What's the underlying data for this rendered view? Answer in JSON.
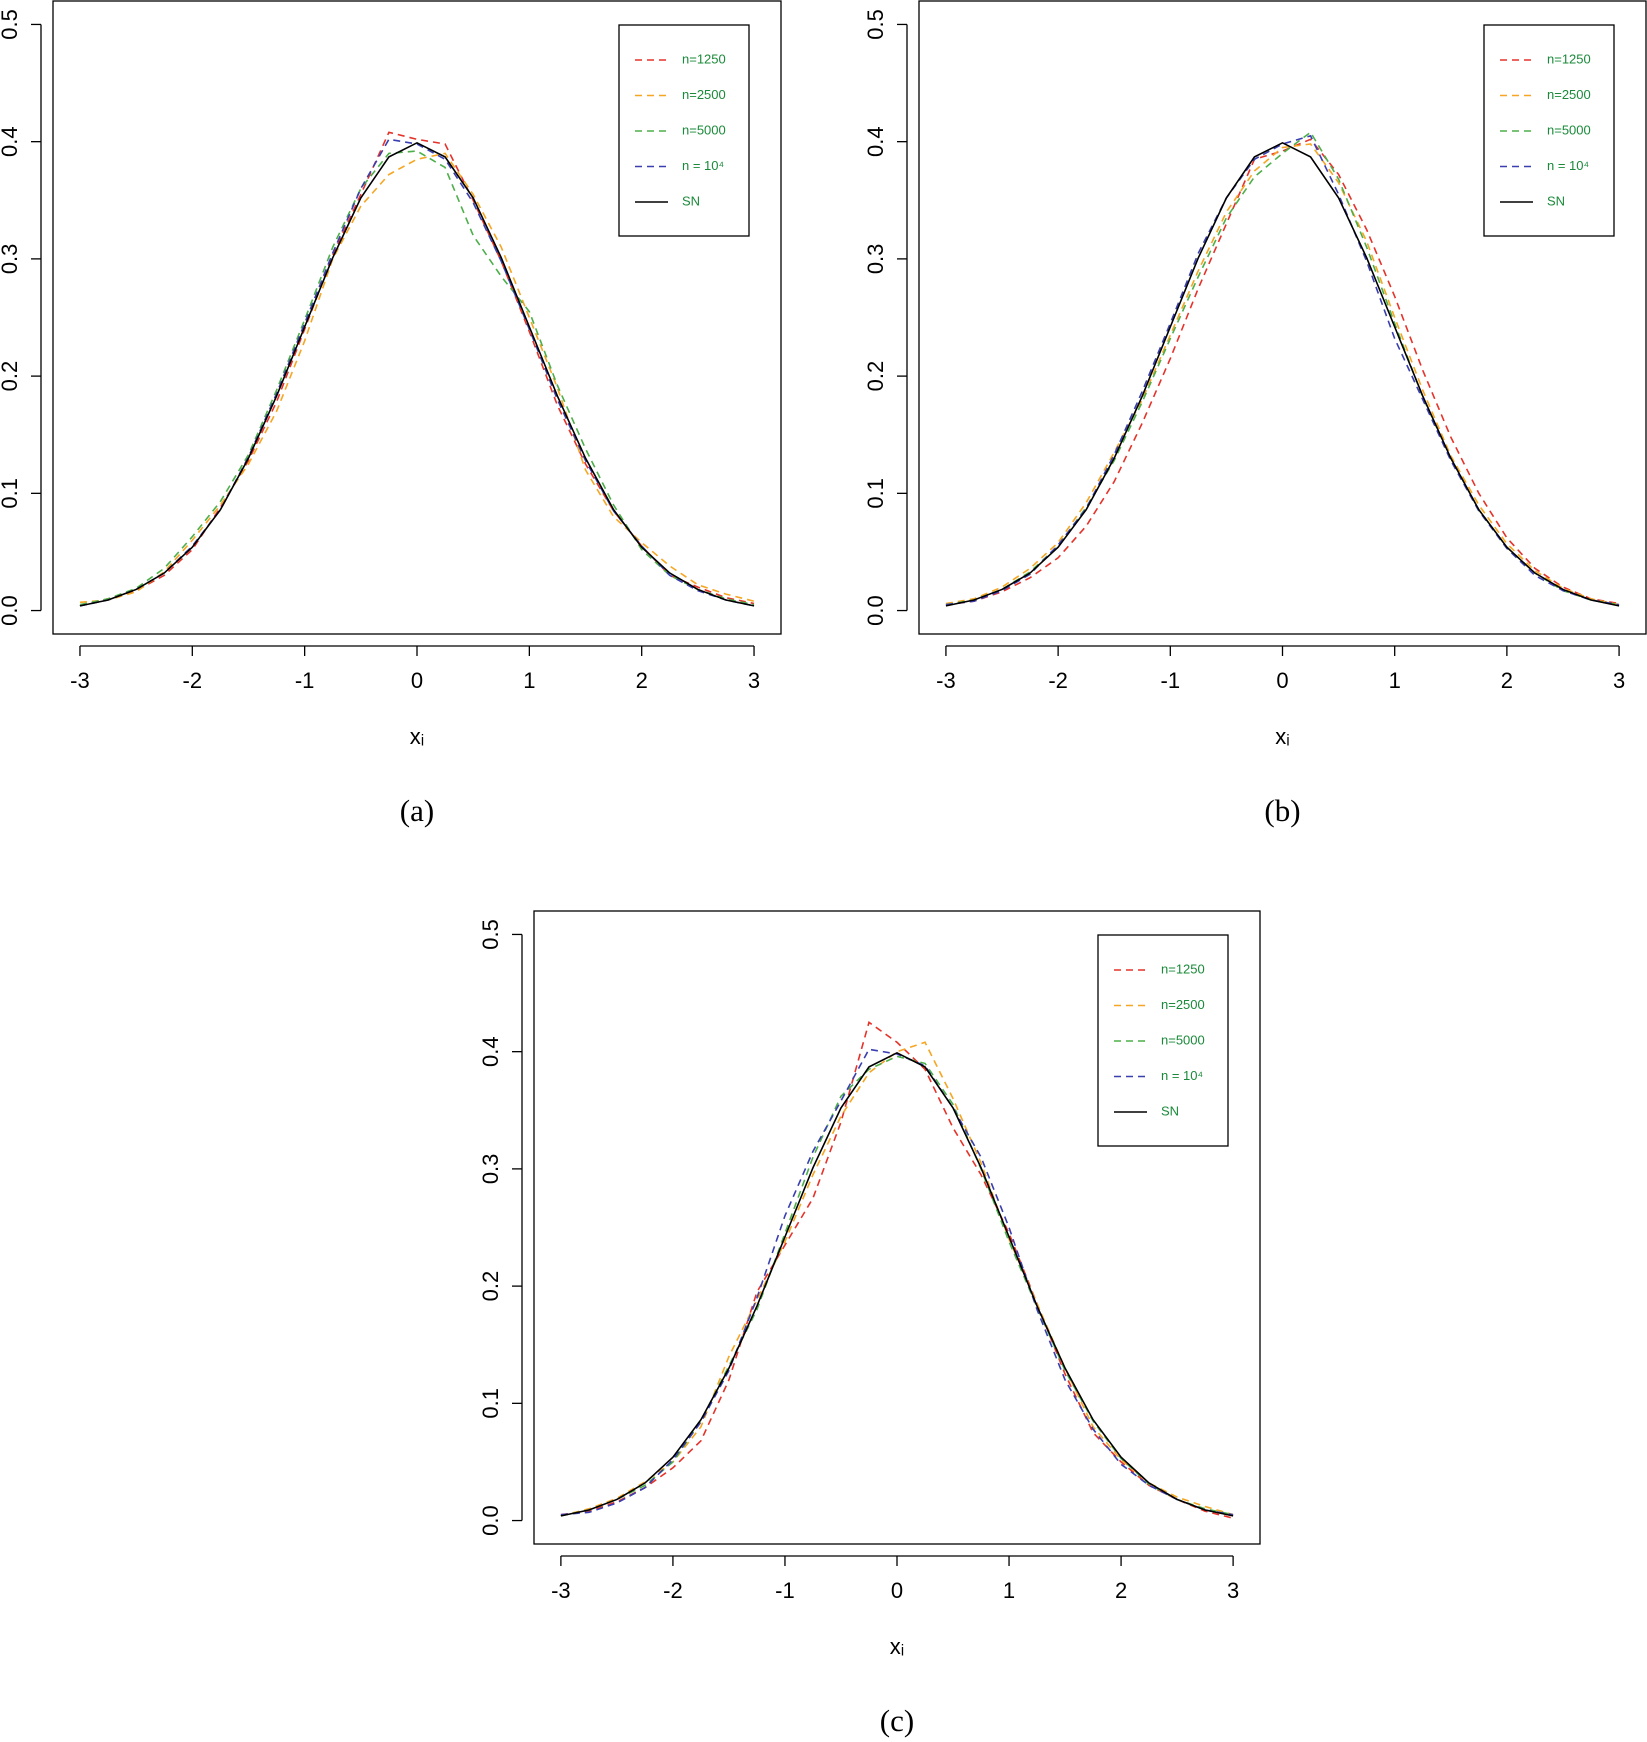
{
  "chart_data": [
    {
      "type": "line",
      "caption": "(a)",
      "xlabel": "xᵢ",
      "xlim": [
        -3.24,
        3.24
      ],
      "ylim": [
        -0.02,
        0.52
      ],
      "xticks": [
        -3,
        -2,
        -1,
        0,
        1,
        2,
        3
      ],
      "yticks": [
        0.0,
        0.1,
        0.2,
        0.3,
        0.4,
        0.5
      ],
      "grid": false,
      "legend": "top-right",
      "x": [
        -3,
        -2.75,
        -2.5,
        -2.25,
        -2,
        -1.75,
        -1.5,
        -1.25,
        -1,
        -0.75,
        -0.5,
        -0.25,
        0,
        0.25,
        0.5,
        0.75,
        1,
        1.25,
        1.5,
        1.75,
        2,
        2.25,
        2.5,
        2.75,
        3
      ],
      "series": [
        {
          "name": "n=1250",
          "color": "#e5332a",
          "linestyle": "dashed",
          "values": [
            0.004,
            0.01,
            0.017,
            0.03,
            0.052,
            0.088,
            0.128,
            0.178,
            0.24,
            0.303,
            0.355,
            0.408,
            0.402,
            0.398,
            0.35,
            0.298,
            0.238,
            0.175,
            0.125,
            0.085,
            0.055,
            0.03,
            0.02,
            0.011,
            0.006
          ]
        },
        {
          "name": "n=2500",
          "color": "#f5a623",
          "linestyle": "dashed",
          "values": [
            0.007,
            0.009,
            0.016,
            0.033,
            0.06,
            0.09,
            0.125,
            0.17,
            0.23,
            0.3,
            0.345,
            0.372,
            0.385,
            0.39,
            0.355,
            0.31,
            0.25,
            0.19,
            0.12,
            0.08,
            0.058,
            0.038,
            0.022,
            0.014,
            0.008
          ]
        },
        {
          "name": "n=5000",
          "color": "#4daf4a",
          "linestyle": "dashed",
          "values": [
            0.005,
            0.01,
            0.019,
            0.036,
            0.063,
            0.093,
            0.133,
            0.188,
            0.248,
            0.31,
            0.36,
            0.39,
            0.392,
            0.378,
            0.32,
            0.285,
            0.255,
            0.192,
            0.138,
            0.09,
            0.052,
            0.03,
            0.018,
            0.01,
            0.005
          ]
        },
        {
          "name": "n = 10⁴",
          "color": "#3a3fb0",
          "linestyle": "dashed",
          "values": [
            0.004,
            0.009,
            0.018,
            0.032,
            0.055,
            0.086,
            0.131,
            0.185,
            0.245,
            0.305,
            0.36,
            0.402,
            0.398,
            0.385,
            0.348,
            0.298,
            0.24,
            0.18,
            0.128,
            0.085,
            0.055,
            0.03,
            0.017,
            0.009,
            0.004
          ]
        },
        {
          "name": "SN",
          "color": "#000000",
          "linestyle": "solid",
          "values": [
            0.004,
            0.009,
            0.018,
            0.032,
            0.054,
            0.086,
            0.13,
            0.183,
            0.242,
            0.301,
            0.352,
            0.387,
            0.399,
            0.387,
            0.352,
            0.301,
            0.242,
            0.183,
            0.13,
            0.086,
            0.054,
            0.032,
            0.018,
            0.009,
            0.004
          ]
        }
      ]
    },
    {
      "type": "line",
      "caption": "(b)",
      "xlabel": "xᵢ",
      "xlim": [
        -3.24,
        3.24
      ],
      "ylim": [
        -0.02,
        0.52
      ],
      "xticks": [
        -3,
        -2,
        -1,
        0,
        1,
        2,
        3
      ],
      "yticks": [
        0.0,
        0.1,
        0.2,
        0.3,
        0.4,
        0.5
      ],
      "grid": false,
      "legend": "top-right",
      "x": [
        -3,
        -2.75,
        -2.5,
        -2.25,
        -2,
        -1.75,
        -1.5,
        -1.25,
        -1,
        -0.75,
        -0.5,
        -0.25,
        0,
        0.25,
        0.5,
        0.75,
        1,
        1.25,
        1.5,
        1.75,
        2,
        2.25,
        2.5,
        2.75,
        3
      ],
      "series": [
        {
          "name": "n=1250",
          "color": "#e5332a",
          "linestyle": "dashed",
          "values": [
            0.005,
            0.008,
            0.016,
            0.028,
            0.045,
            0.072,
            0.11,
            0.16,
            0.215,
            0.275,
            0.33,
            0.385,
            0.392,
            0.402,
            0.372,
            0.325,
            0.268,
            0.205,
            0.148,
            0.1,
            0.062,
            0.036,
            0.02,
            0.01,
            0.006
          ]
        },
        {
          "name": "n=2500",
          "color": "#f5a623",
          "linestyle": "dashed",
          "values": [
            0.006,
            0.01,
            0.02,
            0.036,
            0.058,
            0.092,
            0.135,
            0.18,
            0.235,
            0.29,
            0.34,
            0.375,
            0.395,
            0.398,
            0.365,
            0.315,
            0.25,
            0.188,
            0.132,
            0.09,
            0.057,
            0.034,
            0.019,
            0.01,
            0.005
          ]
        },
        {
          "name": "n=5000",
          "color": "#4daf4a",
          "linestyle": "dashed",
          "values": [
            0.005,
            0.009,
            0.018,
            0.033,
            0.055,
            0.088,
            0.128,
            0.178,
            0.232,
            0.285,
            0.335,
            0.37,
            0.39,
            0.408,
            0.368,
            0.31,
            0.245,
            0.182,
            0.13,
            0.086,
            0.054,
            0.032,
            0.017,
            0.009,
            0.005
          ]
        },
        {
          "name": "n = 10⁴",
          "color": "#3a3fb0",
          "linestyle": "dashed",
          "values": [
            0.005,
            0.008,
            0.017,
            0.031,
            0.056,
            0.087,
            0.133,
            0.187,
            0.245,
            0.305,
            0.352,
            0.385,
            0.398,
            0.405,
            0.355,
            0.298,
            0.232,
            0.18,
            0.128,
            0.085,
            0.053,
            0.03,
            0.017,
            0.009,
            0.005
          ]
        },
        {
          "name": "SN",
          "color": "#000000",
          "linestyle": "solid",
          "values": [
            0.004,
            0.009,
            0.018,
            0.032,
            0.054,
            0.086,
            0.13,
            0.183,
            0.242,
            0.301,
            0.352,
            0.387,
            0.399,
            0.387,
            0.352,
            0.301,
            0.242,
            0.183,
            0.13,
            0.086,
            0.054,
            0.032,
            0.018,
            0.009,
            0.004
          ]
        }
      ]
    },
    {
      "type": "line",
      "caption": "(c)",
      "xlabel": "xᵢ",
      "xlim": [
        -3.24,
        3.24
      ],
      "ylim": [
        -0.02,
        0.52
      ],
      "xticks": [
        -3,
        -2,
        -1,
        0,
        1,
        2,
        3
      ],
      "yticks": [
        0.0,
        0.1,
        0.2,
        0.3,
        0.4,
        0.5
      ],
      "grid": false,
      "legend": "top-right",
      "x": [
        -3,
        -2.75,
        -2.5,
        -2.25,
        -2,
        -1.75,
        -1.5,
        -1.25,
        -1,
        -0.75,
        -0.5,
        -0.25,
        0,
        0.25,
        0.5,
        0.75,
        1,
        1.25,
        1.5,
        1.75,
        2,
        2.25,
        2.5,
        2.75,
        3
      ],
      "series": [
        {
          "name": "n=1250",
          "color": "#e5332a",
          "linestyle": "dashed",
          "values": [
            0.005,
            0.008,
            0.016,
            0.028,
            0.045,
            0.068,
            0.12,
            0.195,
            0.235,
            0.275,
            0.34,
            0.425,
            0.408,
            0.385,
            0.335,
            0.295,
            0.245,
            0.185,
            0.125,
            0.075,
            0.05,
            0.03,
            0.018,
            0.008,
            0.002
          ]
        },
        {
          "name": "n=2500",
          "color": "#f5a623",
          "linestyle": "dashed",
          "values": [
            0.004,
            0.01,
            0.019,
            0.033,
            0.05,
            0.08,
            0.14,
            0.188,
            0.238,
            0.295,
            0.345,
            0.382,
            0.4,
            0.408,
            0.36,
            0.305,
            0.24,
            0.185,
            0.13,
            0.08,
            0.052,
            0.032,
            0.02,
            0.012,
            0.005
          ]
        },
        {
          "name": "n=5000",
          "color": "#4daf4a",
          "linestyle": "dashed",
          "values": [
            0.004,
            0.009,
            0.018,
            0.03,
            0.05,
            0.085,
            0.132,
            0.18,
            0.245,
            0.31,
            0.362,
            0.385,
            0.396,
            0.39,
            0.355,
            0.3,
            0.238,
            0.182,
            0.128,
            0.085,
            0.053,
            0.031,
            0.018,
            0.01,
            0.005
          ]
        },
        {
          "name": "n = 10⁴",
          "color": "#3a3fb0",
          "linestyle": "dashed",
          "values": [
            0.005,
            0.007,
            0.015,
            0.028,
            0.052,
            0.084,
            0.128,
            0.19,
            0.26,
            0.315,
            0.358,
            0.402,
            0.398,
            0.388,
            0.352,
            0.31,
            0.25,
            0.18,
            0.12,
            0.078,
            0.048,
            0.03,
            0.018,
            0.009,
            0.005
          ]
        },
        {
          "name": "SN",
          "color": "#000000",
          "linestyle": "solid",
          "values": [
            0.004,
            0.009,
            0.018,
            0.032,
            0.054,
            0.086,
            0.13,
            0.183,
            0.242,
            0.301,
            0.352,
            0.387,
            0.399,
            0.387,
            0.352,
            0.301,
            0.242,
            0.183,
            0.13,
            0.086,
            0.054,
            0.032,
            0.018,
            0.009,
            0.004
          ]
        }
      ]
    }
  ]
}
